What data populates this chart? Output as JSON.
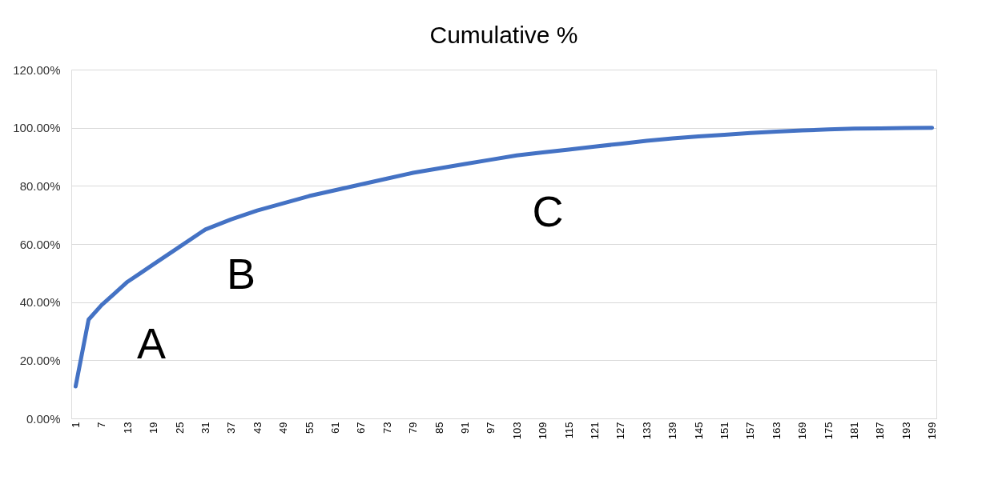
{
  "chart_data": {
    "type": "line",
    "title": "Cumulative %",
    "x": [
      1,
      4,
      7,
      10,
      13,
      16,
      19,
      25,
      31,
      37,
      43,
      49,
      55,
      61,
      67,
      73,
      79,
      85,
      91,
      97,
      103,
      109,
      115,
      121,
      127,
      133,
      139,
      145,
      151,
      157,
      163,
      169,
      175,
      181,
      187,
      193,
      199
    ],
    "series": [
      {
        "color": "#4472c4",
        "values": [
          11,
          34,
          39,
          43,
          47,
          50,
          53,
          59,
          65,
          68.5,
          71.5,
          74,
          76.5,
          78.5,
          80.5,
          82.5,
          84.5,
          86,
          87.5,
          89,
          90.5,
          91.5,
          92.5,
          93.5,
          94.5,
          95.5,
          96.3,
          97,
          97.6,
          98.2,
          98.7,
          99.1,
          99.4,
          99.7,
          99.8,
          99.9,
          100
        ]
      }
    ],
    "xlim": [
      0,
      200
    ],
    "xticks": [
      1,
      7,
      13,
      19,
      25,
      31,
      37,
      43,
      49,
      55,
      61,
      67,
      73,
      79,
      85,
      91,
      97,
      103,
      109,
      115,
      121,
      127,
      133,
      139,
      145,
      151,
      157,
      163,
      169,
      175,
      181,
      187,
      193,
      199
    ],
    "ylim": [
      0,
      120
    ],
    "yticks": [
      {
        "value": 0,
        "label": "0.00%"
      },
      {
        "value": 20,
        "label": "20.00%"
      },
      {
        "value": 40,
        "label": "40.00%"
      },
      {
        "value": 60,
        "label": "60.00%"
      },
      {
        "value": 80,
        "label": "80.00%"
      },
      {
        "value": 100,
        "label": "100.00%"
      },
      {
        "value": 120,
        "label": "120.00%"
      }
    ],
    "grid": "y",
    "marker": "none",
    "line_style": "solid",
    "annotations": [
      "A",
      "B",
      "C"
    ]
  }
}
